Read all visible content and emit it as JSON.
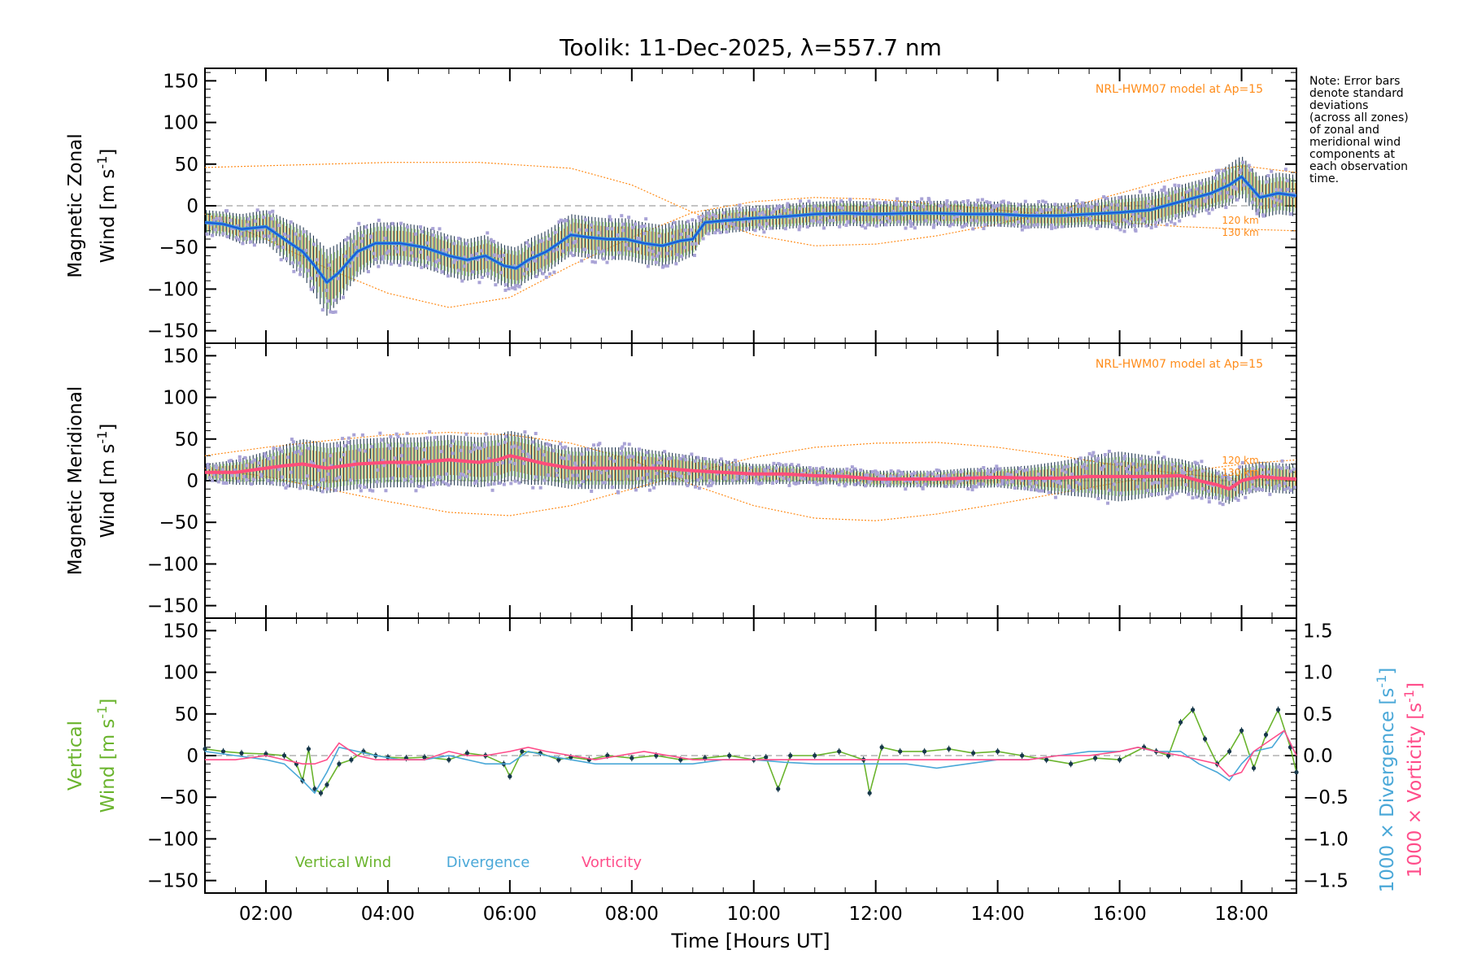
{
  "colors": {
    "axis": "#000000",
    "model": "#ff8c1a",
    "scatter": "#a9a3d6",
    "errbar_dark": "#243a52",
    "errbar_green": "#7fc25a",
    "errbar_orange": "#f2a24a",
    "zonal_line": "#2f8fe0",
    "zonal_line_dark": "#1a4fd6",
    "merid_line": "#ff4d7a",
    "vertical": "#6ab42d",
    "divergence": "#4aa8d8",
    "vorticity": "#ff4d8a",
    "vertical_marker": "#17384a",
    "zero_line": "#888888"
  },
  "chart_data": {
    "type": "line",
    "title": "Toolik: 11-Dec-2025, λ=557.7 nm",
    "xlabel": "Time [Hours UT]",
    "xlim": [
      1.0,
      18.9
    ],
    "xtick_labels": [
      {
        "x": 2,
        "label": "02:00"
      },
      {
        "x": 4,
        "label": "04:00"
      },
      {
        "x": 6,
        "label": "06:00"
      },
      {
        "x": 8,
        "label": "08:00"
      },
      {
        "x": 10,
        "label": "10:00"
      },
      {
        "x": 12,
        "label": "12:00"
      },
      {
        "x": 14,
        "label": "14:00"
      },
      {
        "x": 16,
        "label": "16:00"
      },
      {
        "x": 18,
        "label": "18:00"
      }
    ],
    "note": [
      "Note: Error bars",
      "denote standard",
      "deviations",
      "(across all zones)",
      "of zonal and",
      "meridional wind",
      "components at",
      "each observation",
      "time."
    ],
    "panels": [
      {
        "id": "zonal",
        "ylabel_line1": "Magnetic Zonal",
        "ylabel_line2": "Wind [m s",
        "ylabel_sup": "-1",
        "ylabel_close": "]",
        "ylim": [
          -165,
          165
        ],
        "yticks": [
          150,
          100,
          50,
          0,
          -50,
          -100,
          -150
        ],
        "yticklabels": [
          "150",
          "100",
          "50",
          "0",
          "−50",
          "−100",
          "−150"
        ],
        "model_label": "NRL-HWM07 model at Ap=15",
        "altitude_labels": [
          "120 km",
          "130 km"
        ],
        "model_curves": {
          "upper": {
            "x": [
              1.0,
              2.0,
              4.0,
              5.5,
              7.0,
              8.0,
              9.0,
              10.0,
              11.0,
              12.0,
              13.0,
              14.0,
              15.0,
              16.0,
              17.0,
              18.0,
              18.9
            ],
            "y": [
              46,
              48,
              52,
              52,
              45,
              25,
              -8,
              -35,
              -48,
              -46,
              -36,
              -22,
              -5,
              15,
              35,
              48,
              40
            ]
          },
          "lower": {
            "x": [
              1.0,
              2.0,
              3.0,
              4.0,
              5.0,
              6.0,
              7.0,
              8.0,
              9.0,
              10.0,
              11.0,
              12.0,
              13.0,
              14.0,
              15.0,
              16.0,
              17.0,
              18.0,
              18.9
            ],
            "y": [
              -10,
              -40,
              -75,
              -105,
              -122,
              -110,
              -72,
              -38,
              -8,
              5,
              10,
              8,
              2,
              -5,
              -12,
              -20,
              -25,
              -28,
              -30
            ]
          }
        },
        "series": {
          "name": "Zonal wind",
          "x": [
            1.0,
            1.3,
            1.6,
            2.0,
            2.3,
            2.6,
            2.8,
            3.0,
            3.2,
            3.5,
            3.8,
            4.2,
            4.6,
            5.0,
            5.3,
            5.6,
            5.9,
            6.1,
            6.3,
            6.6,
            6.8,
            7.0,
            7.3,
            7.6,
            7.9,
            8.2,
            8.5,
            8.8,
            9.0,
            9.2,
            9.5,
            10.0,
            10.5,
            11.0,
            11.5,
            12.0,
            12.5,
            13.0,
            13.5,
            14.0,
            14.5,
            15.0,
            15.5,
            16.0,
            16.5,
            17.0,
            17.5,
            17.8,
            18.0,
            18.3,
            18.6,
            18.9
          ],
          "y": [
            -20,
            -22,
            -28,
            -25,
            -40,
            -55,
            -72,
            -92,
            -80,
            -55,
            -45,
            -45,
            -50,
            -60,
            -65,
            -60,
            -72,
            -75,
            -65,
            -55,
            -45,
            -35,
            -38,
            -40,
            -40,
            -45,
            -48,
            -42,
            -40,
            -20,
            -18,
            -15,
            -13,
            -10,
            -9,
            -10,
            -9,
            -9,
            -10,
            -10,
            -12,
            -12,
            -10,
            -8,
            -5,
            5,
            15,
            25,
            35,
            10,
            15,
            12
          ],
          "std": [
            15,
            15,
            18,
            20,
            25,
            30,
            35,
            40,
            35,
            30,
            25,
            25,
            25,
            25,
            25,
            25,
            25,
            25,
            25,
            25,
            25,
            25,
            25,
            25,
            25,
            25,
            25,
            25,
            20,
            15,
            15,
            15,
            15,
            15,
            15,
            15,
            15,
            15,
            15,
            15,
            15,
            15,
            15,
            20,
            20,
            20,
            20,
            25,
            25,
            25,
            25,
            25
          ]
        }
      },
      {
        "id": "meridional",
        "ylabel_line1": "Magnetic Meridional",
        "ylabel_line2": "Wind [m s",
        "ylabel_sup": "-1",
        "ylabel_close": "]",
        "ylim": [
          -165,
          165
        ],
        "yticks": [
          150,
          100,
          50,
          0,
          -50,
          -100,
          -150
        ],
        "yticklabels": [
          "150",
          "100",
          "50",
          "0",
          "−50",
          "−100",
          "−150"
        ],
        "model_label": "NRL-HWM07 model at Ap=15",
        "altitude_labels": [
          "120 km",
          "130 km"
        ],
        "model_curves": {
          "upper": {
            "x": [
              1.0,
              2.0,
              3.0,
              4.0,
              5.0,
              6.0,
              7.0,
              8.0,
              9.0,
              10.0,
              11.0,
              12.0,
              13.0,
              14.0,
              15.0,
              16.0,
              17.0,
              18.0,
              18.9
            ],
            "y": [
              30,
              40,
              48,
              55,
              58,
              55,
              45,
              25,
              -5,
              -30,
              -45,
              -48,
              -40,
              -28,
              -15,
              -2,
              10,
              20,
              25
            ]
          },
          "lower": {
            "x": [
              1.0,
              2.0,
              3.0,
              4.0,
              5.0,
              6.0,
              7.0,
              8.0,
              9.0,
              10.0,
              11.0,
              12.0,
              13.0,
              14.0,
              15.0,
              16.0,
              17.0,
              18.0,
              18.9
            ],
            "y": [
              15,
              5,
              -10,
              -25,
              -38,
              -42,
              -30,
              -10,
              10,
              28,
              40,
              45,
              46,
              40,
              30,
              18,
              8,
              2,
              0
            ]
          }
        },
        "series": {
          "name": "Meridional wind",
          "x": [
            1.0,
            1.5,
            2.0,
            2.3,
            2.6,
            3.0,
            3.5,
            4.0,
            4.5,
            5.0,
            5.5,
            5.8,
            6.0,
            6.3,
            6.6,
            7.0,
            7.5,
            8.0,
            8.5,
            9.0,
            9.5,
            10.0,
            10.5,
            11.0,
            11.5,
            12.0,
            12.5,
            13.0,
            13.5,
            14.0,
            14.5,
            15.0,
            15.5,
            16.0,
            16.5,
            17.0,
            17.3,
            17.6,
            17.8,
            18.0,
            18.3,
            18.6,
            18.9
          ],
          "y": [
            10,
            10,
            15,
            18,
            20,
            15,
            20,
            22,
            22,
            25,
            22,
            25,
            30,
            25,
            20,
            15,
            15,
            15,
            15,
            12,
            10,
            8,
            8,
            6,
            5,
            2,
            2,
            2,
            3,
            4,
            3,
            3,
            5,
            5,
            5,
            6,
            0,
            -5,
            -10,
            0,
            5,
            3,
            2
          ],
          "std": [
            10,
            15,
            20,
            25,
            30,
            30,
            30,
            30,
            30,
            30,
            30,
            30,
            30,
            30,
            25,
            25,
            25,
            25,
            20,
            18,
            15,
            12,
            12,
            10,
            10,
            10,
            10,
            10,
            12,
            12,
            15,
            20,
            25,
            30,
            25,
            20,
            20,
            18,
            18,
            18,
            18,
            18,
            18
          ]
        }
      },
      {
        "id": "vertical",
        "ylabel_line1": "Vertical",
        "ylabel_line2": "Wind [m s",
        "ylabel_sup": "-1",
        "ylabel_close": "]",
        "ylim": [
          -165,
          165
        ],
        "yticks": [
          150,
          100,
          50,
          0,
          -50,
          -100,
          -150
        ],
        "yticklabels": [
          "150",
          "100",
          "50",
          "0",
          "−50",
          "−100",
          "−150"
        ],
        "right_axis": {
          "ylim": [
            -1.65,
            1.65
          ],
          "yticks": [
            1.5,
            1.0,
            0.5,
            0.0,
            -0.5,
            -1.0,
            -1.5
          ],
          "yticklabels": [
            "1.5",
            "1.0",
            "0.5",
            "0.0",
            "−0.5",
            "−1.0",
            "−1.5"
          ],
          "label_div": "1000 × Divergence [s",
          "label_vort": "1000 × Vorticity [s",
          "label_sup": "-1",
          "label_close": "]"
        },
        "legend": [
          "Vertical Wind",
          "Divergence",
          "Vorticity"
        ],
        "series": [
          {
            "name": "Vertical Wind",
            "axis": "left",
            "x": [
              1.0,
              1.3,
              1.6,
              2.0,
              2.3,
              2.5,
              2.6,
              2.7,
              2.8,
              2.9,
              3.0,
              3.2,
              3.4,
              3.6,
              3.8,
              4.0,
              4.3,
              4.6,
              5.0,
              5.3,
              5.6,
              5.9,
              6.0,
              6.2,
              6.5,
              6.8,
              7.0,
              7.3,
              7.6,
              8.0,
              8.4,
              8.8,
              9.2,
              9.6,
              10.0,
              10.2,
              10.4,
              10.6,
              11.0,
              11.4,
              11.8,
              11.9,
              12.1,
              12.4,
              12.8,
              13.2,
              13.6,
              14.0,
              14.4,
              14.8,
              15.2,
              15.6,
              16.0,
              16.4,
              16.6,
              16.8,
              17.0,
              17.2,
              17.4,
              17.6,
              17.8,
              18.0,
              18.2,
              18.4,
              18.6,
              18.8,
              18.9
            ],
            "y": [
              8,
              5,
              3,
              2,
              0,
              -10,
              -30,
              8,
              -40,
              -45,
              -35,
              -10,
              -5,
              5,
              0,
              -2,
              -3,
              -2,
              -5,
              3,
              0,
              -10,
              -25,
              5,
              3,
              -5,
              -2,
              -5,
              0,
              -3,
              0,
              -5,
              -3,
              0,
              -5,
              -2,
              -40,
              0,
              0,
              5,
              -5,
              -45,
              10,
              5,
              5,
              8,
              3,
              5,
              0,
              -5,
              -10,
              -3,
              -5,
              10,
              5,
              0,
              40,
              55,
              20,
              -10,
              5,
              30,
              -15,
              25,
              55,
              10,
              -20
            ]
          },
          {
            "name": "Divergence",
            "axis": "right",
            "x": [
              1.0,
              1.5,
              2.0,
              2.3,
              2.6,
              2.8,
              3.0,
              3.2,
              3.5,
              3.8,
              4.2,
              4.6,
              5.0,
              5.3,
              5.6,
              6.0,
              6.3,
              6.6,
              7.0,
              7.4,
              7.8,
              8.2,
              8.6,
              9.0,
              9.5,
              10.0,
              10.5,
              11.0,
              11.5,
              12.0,
              12.5,
              13.0,
              13.5,
              14.0,
              14.5,
              15.0,
              15.5,
              16.0,
              16.3,
              16.6,
              17.0,
              17.3,
              17.6,
              17.8,
              18.0,
              18.2,
              18.5,
              18.7,
              18.9
            ],
            "y": [
              0.05,
              0.0,
              -0.05,
              -0.1,
              -0.3,
              -0.45,
              -0.2,
              0.1,
              0.05,
              0.0,
              -0.05,
              -0.05,
              0.0,
              -0.05,
              -0.1,
              -0.1,
              0.05,
              0.0,
              -0.05,
              -0.1,
              -0.1,
              -0.1,
              -0.1,
              -0.1,
              -0.05,
              -0.05,
              -0.08,
              -0.1,
              -0.1,
              -0.1,
              -0.1,
              -0.15,
              -0.1,
              -0.05,
              -0.05,
              0.0,
              0.05,
              0.05,
              0.1,
              0.05,
              0.05,
              -0.1,
              -0.2,
              -0.3,
              -0.1,
              0.05,
              0.1,
              0.3,
              0.0
            ]
          },
          {
            "name": "Vorticity",
            "axis": "right",
            "x": [
              1.0,
              1.5,
              2.0,
              2.3,
              2.6,
              2.8,
              3.0,
              3.2,
              3.5,
              3.8,
              4.2,
              4.6,
              5.0,
              5.3,
              5.6,
              6.0,
              6.3,
              6.6,
              7.0,
              7.4,
              7.8,
              8.2,
              8.6,
              9.0,
              9.5,
              10.0,
              10.5,
              11.0,
              11.5,
              12.0,
              12.5,
              13.0,
              13.5,
              14.0,
              14.5,
              15.0,
              15.5,
              16.0,
              16.3,
              16.6,
              17.0,
              17.3,
              17.6,
              17.8,
              18.0,
              18.2,
              18.5,
              18.7,
              18.9
            ],
            "y": [
              -0.05,
              -0.05,
              0.0,
              -0.05,
              -0.1,
              -0.1,
              -0.05,
              0.15,
              0.0,
              -0.05,
              -0.05,
              -0.05,
              0.05,
              0.0,
              0.0,
              0.05,
              0.1,
              0.05,
              0.0,
              -0.05,
              0.0,
              0.05,
              0.0,
              -0.05,
              -0.05,
              -0.05,
              -0.05,
              -0.05,
              -0.05,
              -0.05,
              -0.05,
              -0.05,
              -0.05,
              -0.05,
              -0.05,
              0.0,
              0.0,
              0.05,
              0.1,
              0.05,
              0.0,
              -0.05,
              -0.1,
              -0.25,
              -0.2,
              0.05,
              0.2,
              0.3,
              0.0
            ]
          }
        ]
      }
    ]
  }
}
